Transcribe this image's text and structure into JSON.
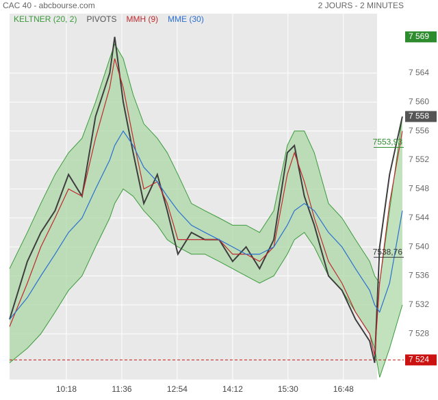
{
  "chart_data": {
    "type": "line",
    "title": "CAC 40 - abcbourse.com",
    "subtitle": "2 JOURS - 2 MINUTES",
    "x": [
      538,
      563,
      582,
      602,
      621,
      640,
      659,
      679,
      686,
      698,
      712,
      727,
      746,
      760,
      775,
      794,
      813,
      833,
      852,
      871,
      890,
      910,
      929,
      939,
      953,
      967,
      987,
      1006,
      1025,
      1045,
      1052,
      1059,
      1073,
      1091
    ],
    "xlim": [
      538,
      1093
    ],
    "xticks": [
      {
        "value": 618,
        "label": "10:18"
      },
      {
        "value": 696,
        "label": "11:36"
      },
      {
        "value": 774,
        "label": "12:54"
      },
      {
        "value": 852,
        "label": "14:12"
      },
      {
        "value": 930,
        "label": "15:30"
      },
      {
        "value": 1008,
        "label": "16:48"
      }
    ],
    "ylim": [
      7521.7,
      7572.2
    ],
    "yticks": [
      {
        "value": 7528,
        "label": "7 528"
      },
      {
        "value": 7532,
        "label": "7 532"
      },
      {
        "value": 7536,
        "label": "7 536"
      },
      {
        "value": 7540,
        "label": "7 540"
      },
      {
        "value": 7544,
        "label": "7 544"
      },
      {
        "value": 7548,
        "label": "7 548"
      },
      {
        "value": 7552,
        "label": "7 552"
      },
      {
        "value": 7556,
        "label": "7 556"
      },
      {
        "value": 7560,
        "label": "7 560"
      },
      {
        "value": 7564,
        "label": "7 564"
      }
    ],
    "grid": true,
    "price": {
      "color": "#3d3d3d",
      "values": [
        7530,
        7538,
        7542,
        7545,
        7550,
        7547,
        7558,
        7564,
        7569,
        7560,
        7553,
        7546,
        7550,
        7545,
        7539,
        7542,
        7541,
        7541,
        7538,
        7540,
        7537,
        7541,
        7553,
        7554,
        7547,
        7543,
        7536,
        7534,
        7530,
        7527,
        7524,
        7540,
        7550,
        7558
      ]
    },
    "keltner": {
      "name": "KELTNER (20, 2)",
      "color": "#3a9a3a",
      "upper": [
        7537,
        7542,
        7546,
        7550,
        7553,
        7555,
        7560,
        7566,
        7568,
        7566,
        7561,
        7557,
        7555,
        7553,
        7550,
        7546,
        7545,
        7544,
        7543,
        7543,
        7542,
        7545,
        7554,
        7556,
        7556,
        7553,
        7546,
        7544,
        7541,
        7538,
        7536,
        7535,
        7545,
        7558
      ],
      "lower": [
        7524,
        7526,
        7528,
        7531,
        7534,
        7536,
        7540,
        7544,
        7546,
        7548,
        7547,
        7545,
        7543,
        7541,
        7540,
        7539,
        7539,
        7538,
        7537,
        7536,
        7535,
        7536,
        7539,
        7541,
        7542,
        7540,
        7536,
        7534,
        7531,
        7528,
        7526,
        7522,
        7526,
        7532
      ]
    },
    "pivots": {
      "name": "PIVOTS",
      "color": "#555555",
      "level_color": "#cc1111",
      "levels": [
        {
          "value": 7524.4,
          "label": "7 524"
        }
      ]
    },
    "mmh": {
      "name": "MMH (9)",
      "color": "#c0282d",
      "values": [
        7529,
        7535,
        7540,
        7544,
        7548,
        7547,
        7555,
        7562,
        7566,
        7562,
        7555,
        7548,
        7549,
        7546,
        7541,
        7541,
        7541,
        7541,
        7539,
        7539,
        7538,
        7540,
        7550,
        7553,
        7549,
        7544,
        7538,
        7535,
        7531,
        7528,
        7525,
        7535,
        7546,
        7556
      ]
    },
    "mme": {
      "name": "MME (30)",
      "color": "#2a6fcf",
      "values": [
        7530,
        7533,
        7536,
        7539,
        7542,
        7544,
        7548,
        7552,
        7554,
        7556,
        7554,
        7551,
        7549,
        7547,
        7545,
        7543,
        7542,
        7541,
        7540,
        7539,
        7539,
        7540,
        7543,
        7545,
        7546,
        7545,
        7542,
        7540,
        7537,
        7534,
        7532,
        7531,
        7535,
        7545
      ]
    },
    "annotations": [
      {
        "value": 7569,
        "label": "7 569",
        "color": "#2e8b2e",
        "style": "box"
      },
      {
        "value": 7558,
        "label": "7 558",
        "color": "#555555",
        "style": "box"
      },
      {
        "value": 7553.93,
        "label": "7553,93",
        "color": "#2e8b2e",
        "style": "text"
      },
      {
        "value": 7538.76,
        "label": "7538,76",
        "color": "#333333",
        "style": "text"
      }
    ]
  }
}
